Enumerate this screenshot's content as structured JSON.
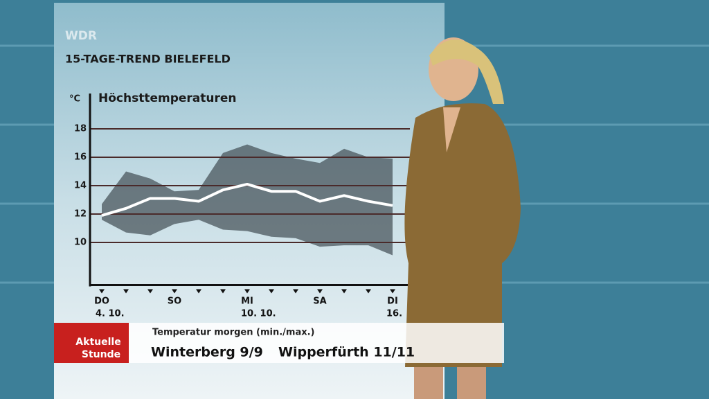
{
  "header": {
    "channel": "WDR",
    "title": "15-TAGE-TREND BIELEFELD"
  },
  "chart_data": {
    "type": "line",
    "title": "Höchsttemperaturen",
    "y_label": "°C",
    "categories": [
      "DO",
      null,
      null,
      "SO",
      null,
      null,
      "MI",
      null,
      null,
      "SA",
      null,
      null,
      "DI"
    ],
    "dates": [
      "4. 10.",
      null,
      null,
      null,
      null,
      null,
      "10. 10.",
      null,
      null,
      null,
      null,
      null,
      "16."
    ],
    "series": [
      {
        "color": "#ffffff",
        "values": [
          11.9,
          12.4,
          13.1,
          13.1,
          12.9,
          13.7,
          14.1,
          13.6,
          13.6,
          12.9,
          13.3,
          12.9,
          12.6
        ]
      },
      {
        "color": "#4a565c",
        "values": [
          12.7,
          15.0,
          14.5,
          13.6,
          13.7,
          16.3,
          16.9,
          16.3,
          15.9,
          15.6,
          16.6,
          16.0,
          15.9
        ]
      },
      {
        "color": "#4a565c",
        "values": [
          11.6,
          10.7,
          10.5,
          11.3,
          11.6,
          10.9,
          10.8,
          10.4,
          10.3,
          9.7,
          9.8,
          9.8,
          9.1
        ]
      }
    ],
    "ylim": [
      7,
      20
    ],
    "yticks": [
      10,
      12,
      14,
      16,
      18
    ],
    "grid": true
  },
  "ticker": {
    "logo": [
      "Aktuelle",
      "Stunde"
    ],
    "heading": "Temperatur morgen (min./max.)",
    "items": [
      "Winterberg 9/9",
      "Wipperfürth 11/11"
    ]
  }
}
